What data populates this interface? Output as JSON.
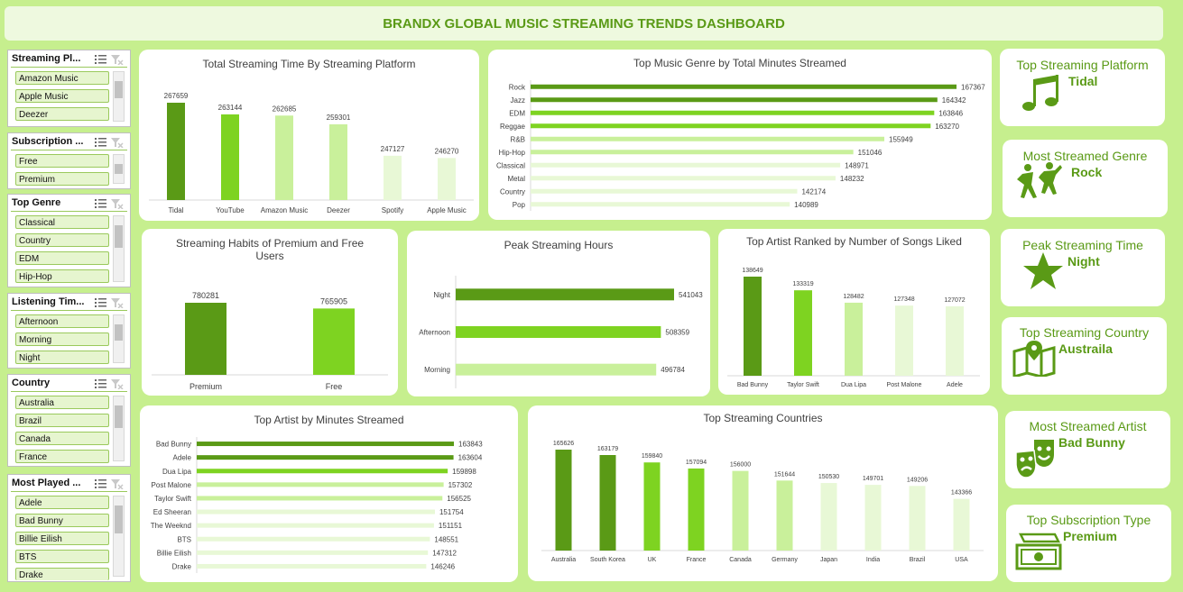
{
  "dashboard": {
    "title": "BRANDX GLOBAL MUSIC STREAMING TRENDS DASHBOARD"
  },
  "colors": {
    "dark": "#5a9a16",
    "medium": "#7ed321",
    "light": "#c9f09b",
    "pale": "#e8f8d6",
    "accent_text": "#5a9a16",
    "background": "#c6ef8e"
  },
  "slicers": [
    {
      "title": "Streaming Pl...",
      "items": [
        "Amazon Music",
        "Apple Music",
        "Deezer"
      ]
    },
    {
      "title": "Subscription ...",
      "items": [
        "Free",
        "Premium"
      ]
    },
    {
      "title": "Top Genre",
      "items": [
        "Classical",
        "Country",
        "EDM",
        "Hip-Hop"
      ]
    },
    {
      "title": "Listening Tim...",
      "items": [
        "Afternoon",
        "Morning",
        "Night"
      ]
    },
    {
      "title": "Country",
      "items": [
        "Australia",
        "Brazil",
        "Canada",
        "France"
      ]
    },
    {
      "title": "Most Played ...",
      "items": [
        "Adele",
        "Bad Bunny",
        "Billie Eilish",
        "BTS",
        "Drake"
      ]
    }
  ],
  "kpis": [
    {
      "title": "Top Streaming Platform",
      "value": "Tidal",
      "icon": "music-note-icon"
    },
    {
      "title": "Most Streamed Genre",
      "value": "Rock",
      "icon": "dancing-people-icon"
    },
    {
      "title": "Peak Streaming Time",
      "value": "Night",
      "icon": "star-icon"
    },
    {
      "title": "Top Streaming Country",
      "value": "Austraila",
      "icon": "map-pin-icon"
    },
    {
      "title": "Most Streamed Artist",
      "value": "Bad Bunny",
      "icon": "theater-masks-icon"
    },
    {
      "title": "Top Subscription Type",
      "value": "Premium",
      "icon": "money-icon"
    }
  ],
  "chart_data": [
    {
      "id": "platform",
      "type": "bar",
      "title": "Total Streaming Time By Streaming Platform",
      "categories": [
        "Tidal",
        "YouTube",
        "Amazon Music",
        "Deezer",
        "Spotify",
        "Apple Music"
      ],
      "values": [
        267659,
        263144,
        262685,
        259301,
        247127,
        246270
      ]
    },
    {
      "id": "genre",
      "type": "bar",
      "orientation": "horizontal",
      "title": "Top Music Genre by Total Minutes Streamed",
      "categories": [
        "Rock",
        "Jazz",
        "EDM",
        "Reggae",
        "R&B",
        "Hip-Hop",
        "Classical",
        "Metal",
        "Country",
        "Pop"
      ],
      "values": [
        167367,
        164342,
        163846,
        163270,
        155949,
        151046,
        148971,
        148232,
        142174,
        140989
      ]
    },
    {
      "id": "subscription",
      "type": "bar",
      "title": "Streaming Habits of Premium and Free Users",
      "categories": [
        "Premium",
        "Free"
      ],
      "values": [
        780281,
        765905
      ]
    },
    {
      "id": "hours",
      "type": "bar",
      "orientation": "horizontal",
      "title": "Peak Streaming Hours",
      "categories": [
        "Night",
        "Afternoon",
        "Morning"
      ],
      "values": [
        541043,
        508359,
        496784
      ]
    },
    {
      "id": "liked",
      "type": "bar",
      "title": "Top Artist Ranked by Number of Songs Liked",
      "categories": [
        "Bad Bunny",
        "Taylor Swift",
        "Dua Lipa",
        "Post Malone",
        "Adele"
      ],
      "values": [
        138649,
        133319,
        128482,
        127348,
        127072
      ]
    },
    {
      "id": "artist_minutes",
      "type": "bar",
      "orientation": "horizontal",
      "title": "Top Artist by Minutes Streamed",
      "categories": [
        "Bad Bunny",
        "Adele",
        "Dua Lipa",
        "Post Malone",
        "Taylor Swift",
        "Ed Sheeran",
        "The Weeknd",
        "BTS",
        "Billie Eilish",
        "Drake"
      ],
      "values": [
        163843,
        163604,
        159898,
        157302,
        156525,
        151754,
        151151,
        148551,
        147312,
        146246
      ]
    },
    {
      "id": "countries",
      "type": "bar",
      "title": "Top Streaming Countries",
      "categories": [
        "Australia",
        "South Korea",
        "UK",
        "France",
        "Canada",
        "Germany",
        "Japan",
        "India",
        "Brazil",
        "USA"
      ],
      "values": [
        165626,
        163179,
        159840,
        157094,
        156000,
        151644,
        150530,
        149701,
        149206,
        143366
      ]
    }
  ]
}
